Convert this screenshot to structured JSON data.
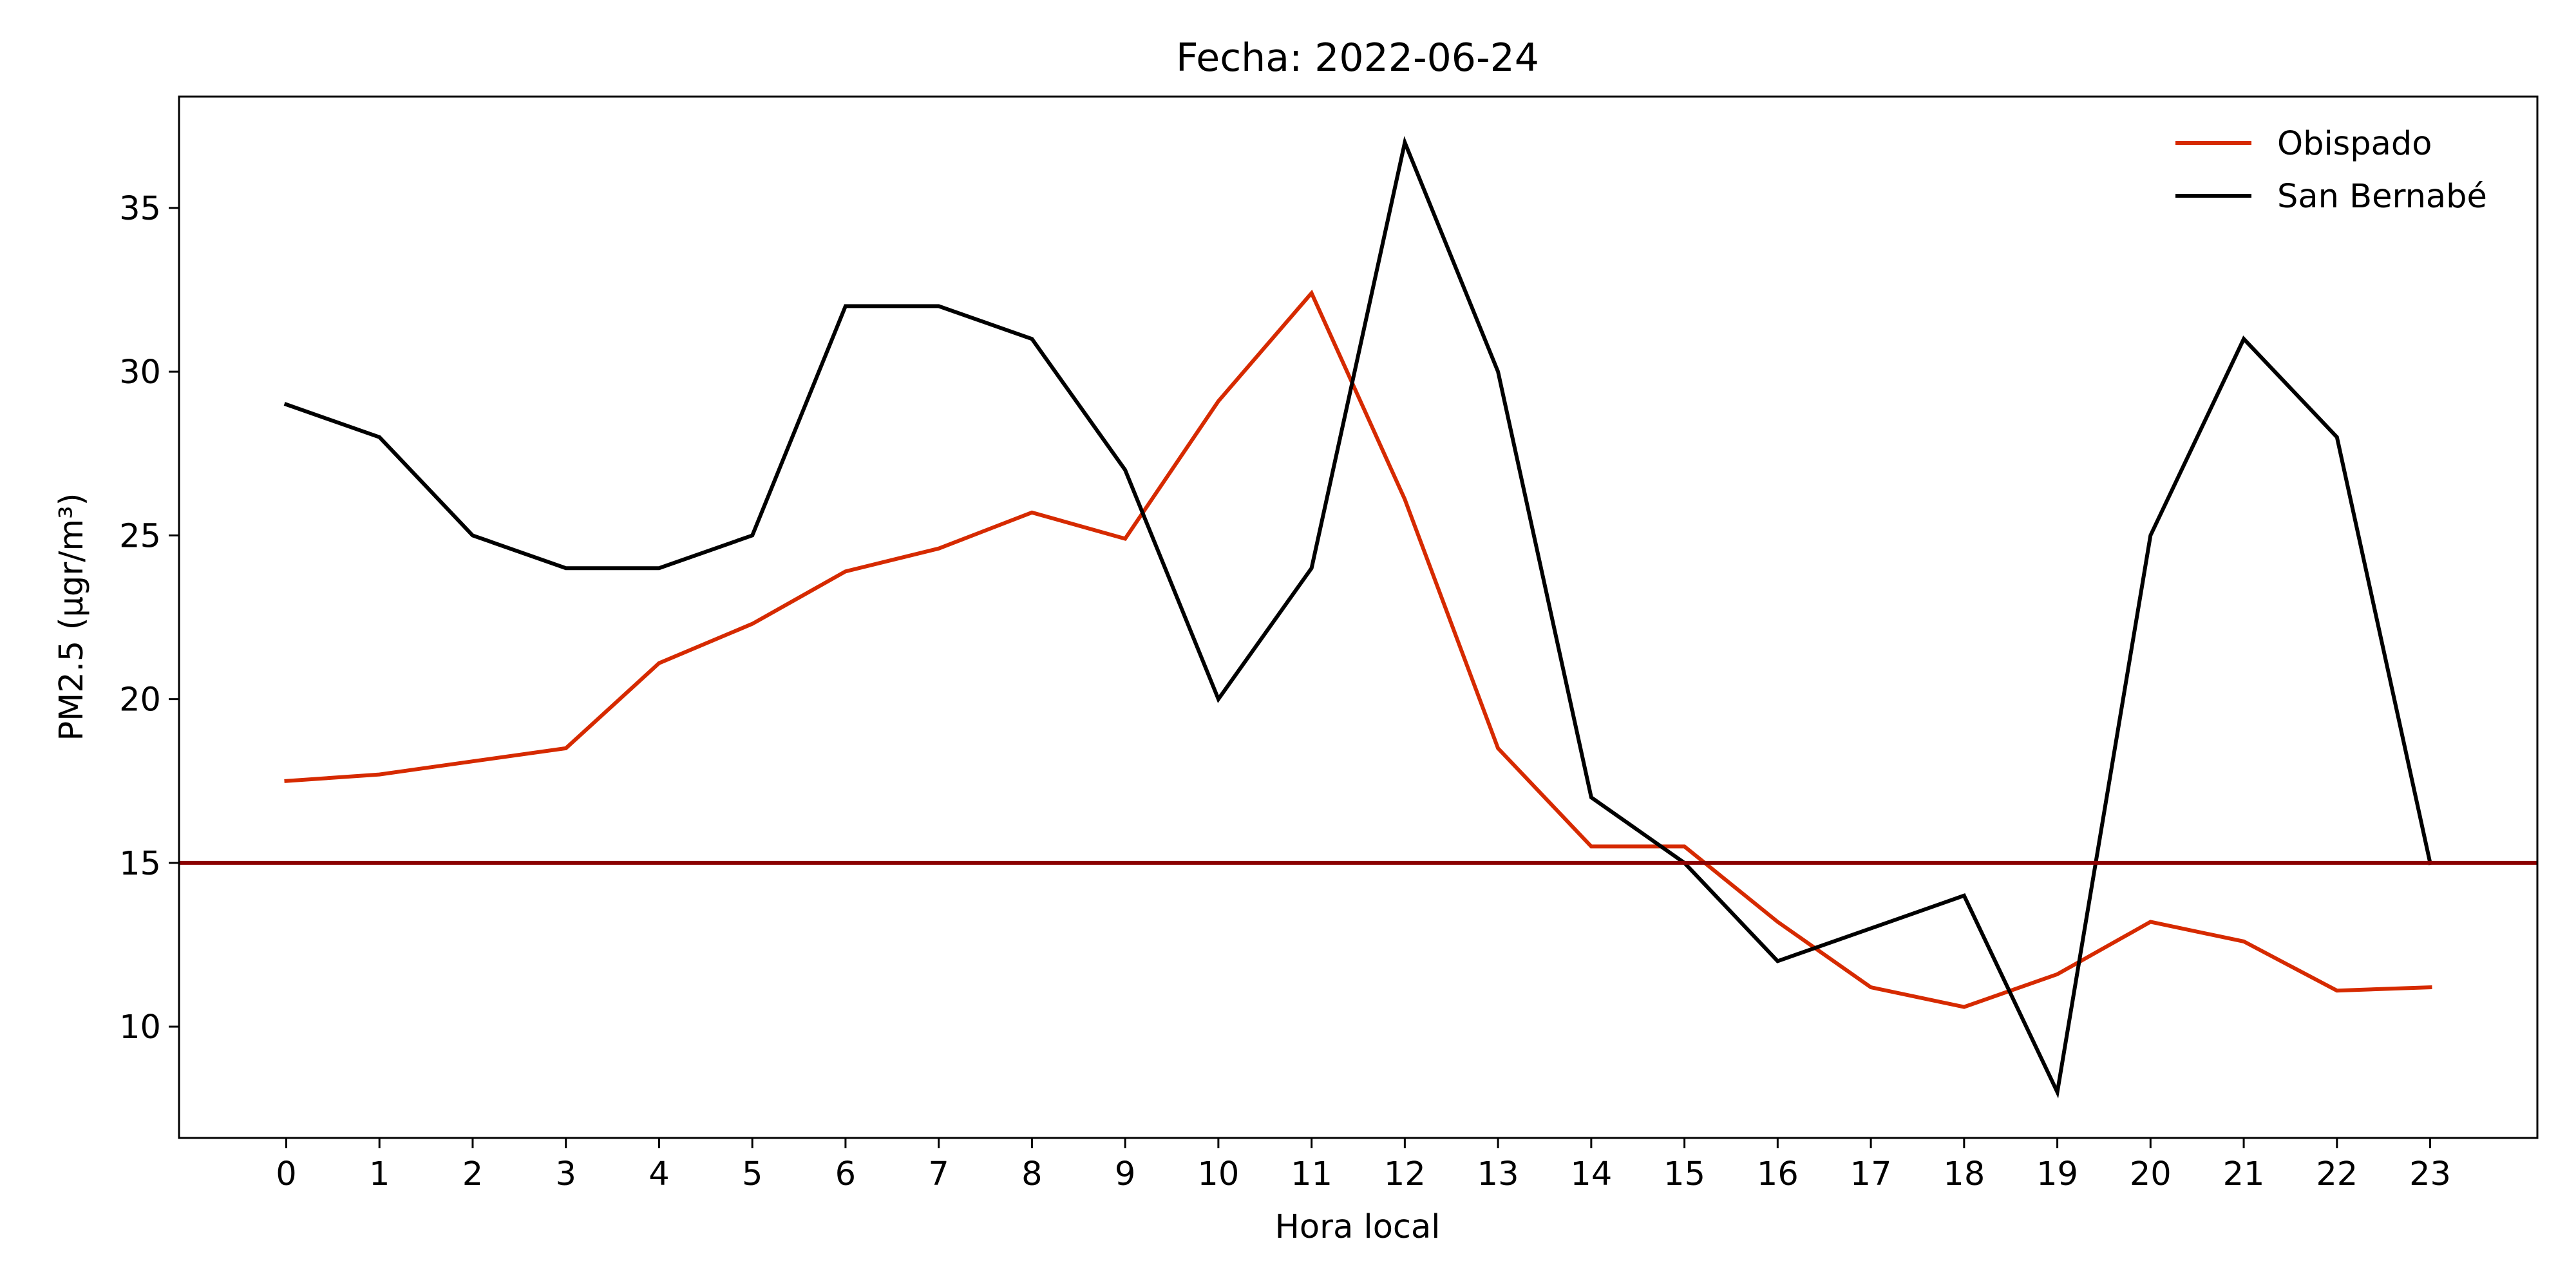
{
  "chart_data": {
    "type": "line",
    "title": "Fecha: 2022-06-24",
    "xlabel": "Hora local",
    "ylabel": "PM2.5 (μgr/m³)",
    "x": [
      0,
      1,
      2,
      3,
      4,
      5,
      6,
      7,
      8,
      9,
      10,
      11,
      12,
      13,
      14,
      15,
      16,
      17,
      18,
      19,
      20,
      21,
      22,
      23
    ],
    "xlim": [
      -1.15,
      24.15
    ],
    "ylim": [
      6.6,
      38.4
    ],
    "yticks": [
      10,
      15,
      20,
      25,
      30,
      35
    ],
    "grid": false,
    "legend_position": "top-right",
    "reference_line": {
      "y": 15,
      "color": "#8b0000"
    },
    "series": [
      {
        "name": "Obispado",
        "color": "#d62a00",
        "values": [
          17.5,
          17.7,
          18.1,
          18.5,
          21.1,
          22.3,
          23.9,
          24.6,
          25.7,
          24.9,
          29.1,
          32.4,
          26.1,
          18.5,
          15.5,
          15.5,
          13.2,
          11.2,
          10.6,
          11.6,
          13.2,
          12.6,
          11.1,
          11.2
        ]
      },
      {
        "name": "San Bernabé",
        "color": "#000000",
        "values": [
          29,
          28,
          25,
          24,
          24,
          25,
          32,
          32,
          31,
          27,
          20,
          24,
          37,
          30,
          17,
          15,
          12,
          13,
          14,
          8,
          25,
          31,
          28,
          15
        ]
      }
    ]
  }
}
